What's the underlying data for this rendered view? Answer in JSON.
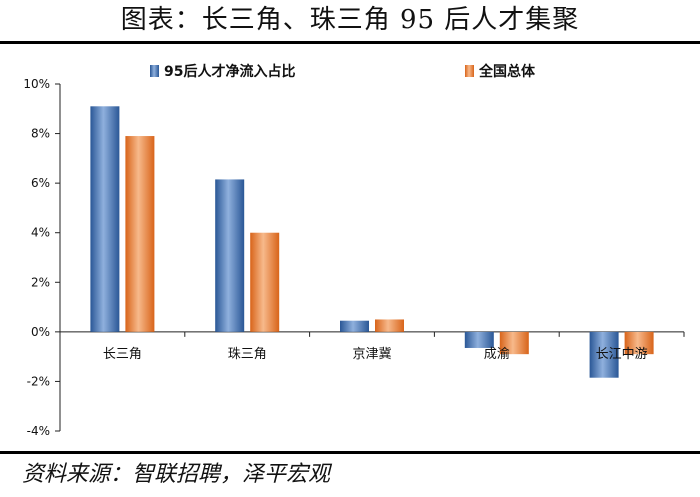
{
  "header": {
    "title": "图表：长三角、珠三角 95 后人才集聚"
  },
  "footer": {
    "source": "资料来源：智联招聘，泽平宏观"
  },
  "colors": {
    "series1": "#3e6fb5",
    "series2": "#ec7b2e"
  },
  "chart_data": {
    "type": "bar",
    "categories": [
      "长三角",
      "珠三角",
      "京津冀",
      "成渝",
      "长江中游"
    ],
    "series": [
      {
        "name": "95后人才净流入占比",
        "values": [
          9.1,
          6.15,
          0.45,
          -0.65,
          -1.85
        ]
      },
      {
        "name": "全国总体",
        "values": [
          7.9,
          4.0,
          0.5,
          -0.9,
          -0.9
        ]
      }
    ],
    "ylim": [
      -4,
      10
    ],
    "yticks": [
      "-4%",
      "-2%",
      "0%",
      "2%",
      "4%",
      "6%",
      "8%",
      "10%"
    ],
    "ytick_values": [
      -4,
      -2,
      0,
      2,
      4,
      6,
      8,
      10
    ],
    "legend_position": "top",
    "grid": false
  }
}
